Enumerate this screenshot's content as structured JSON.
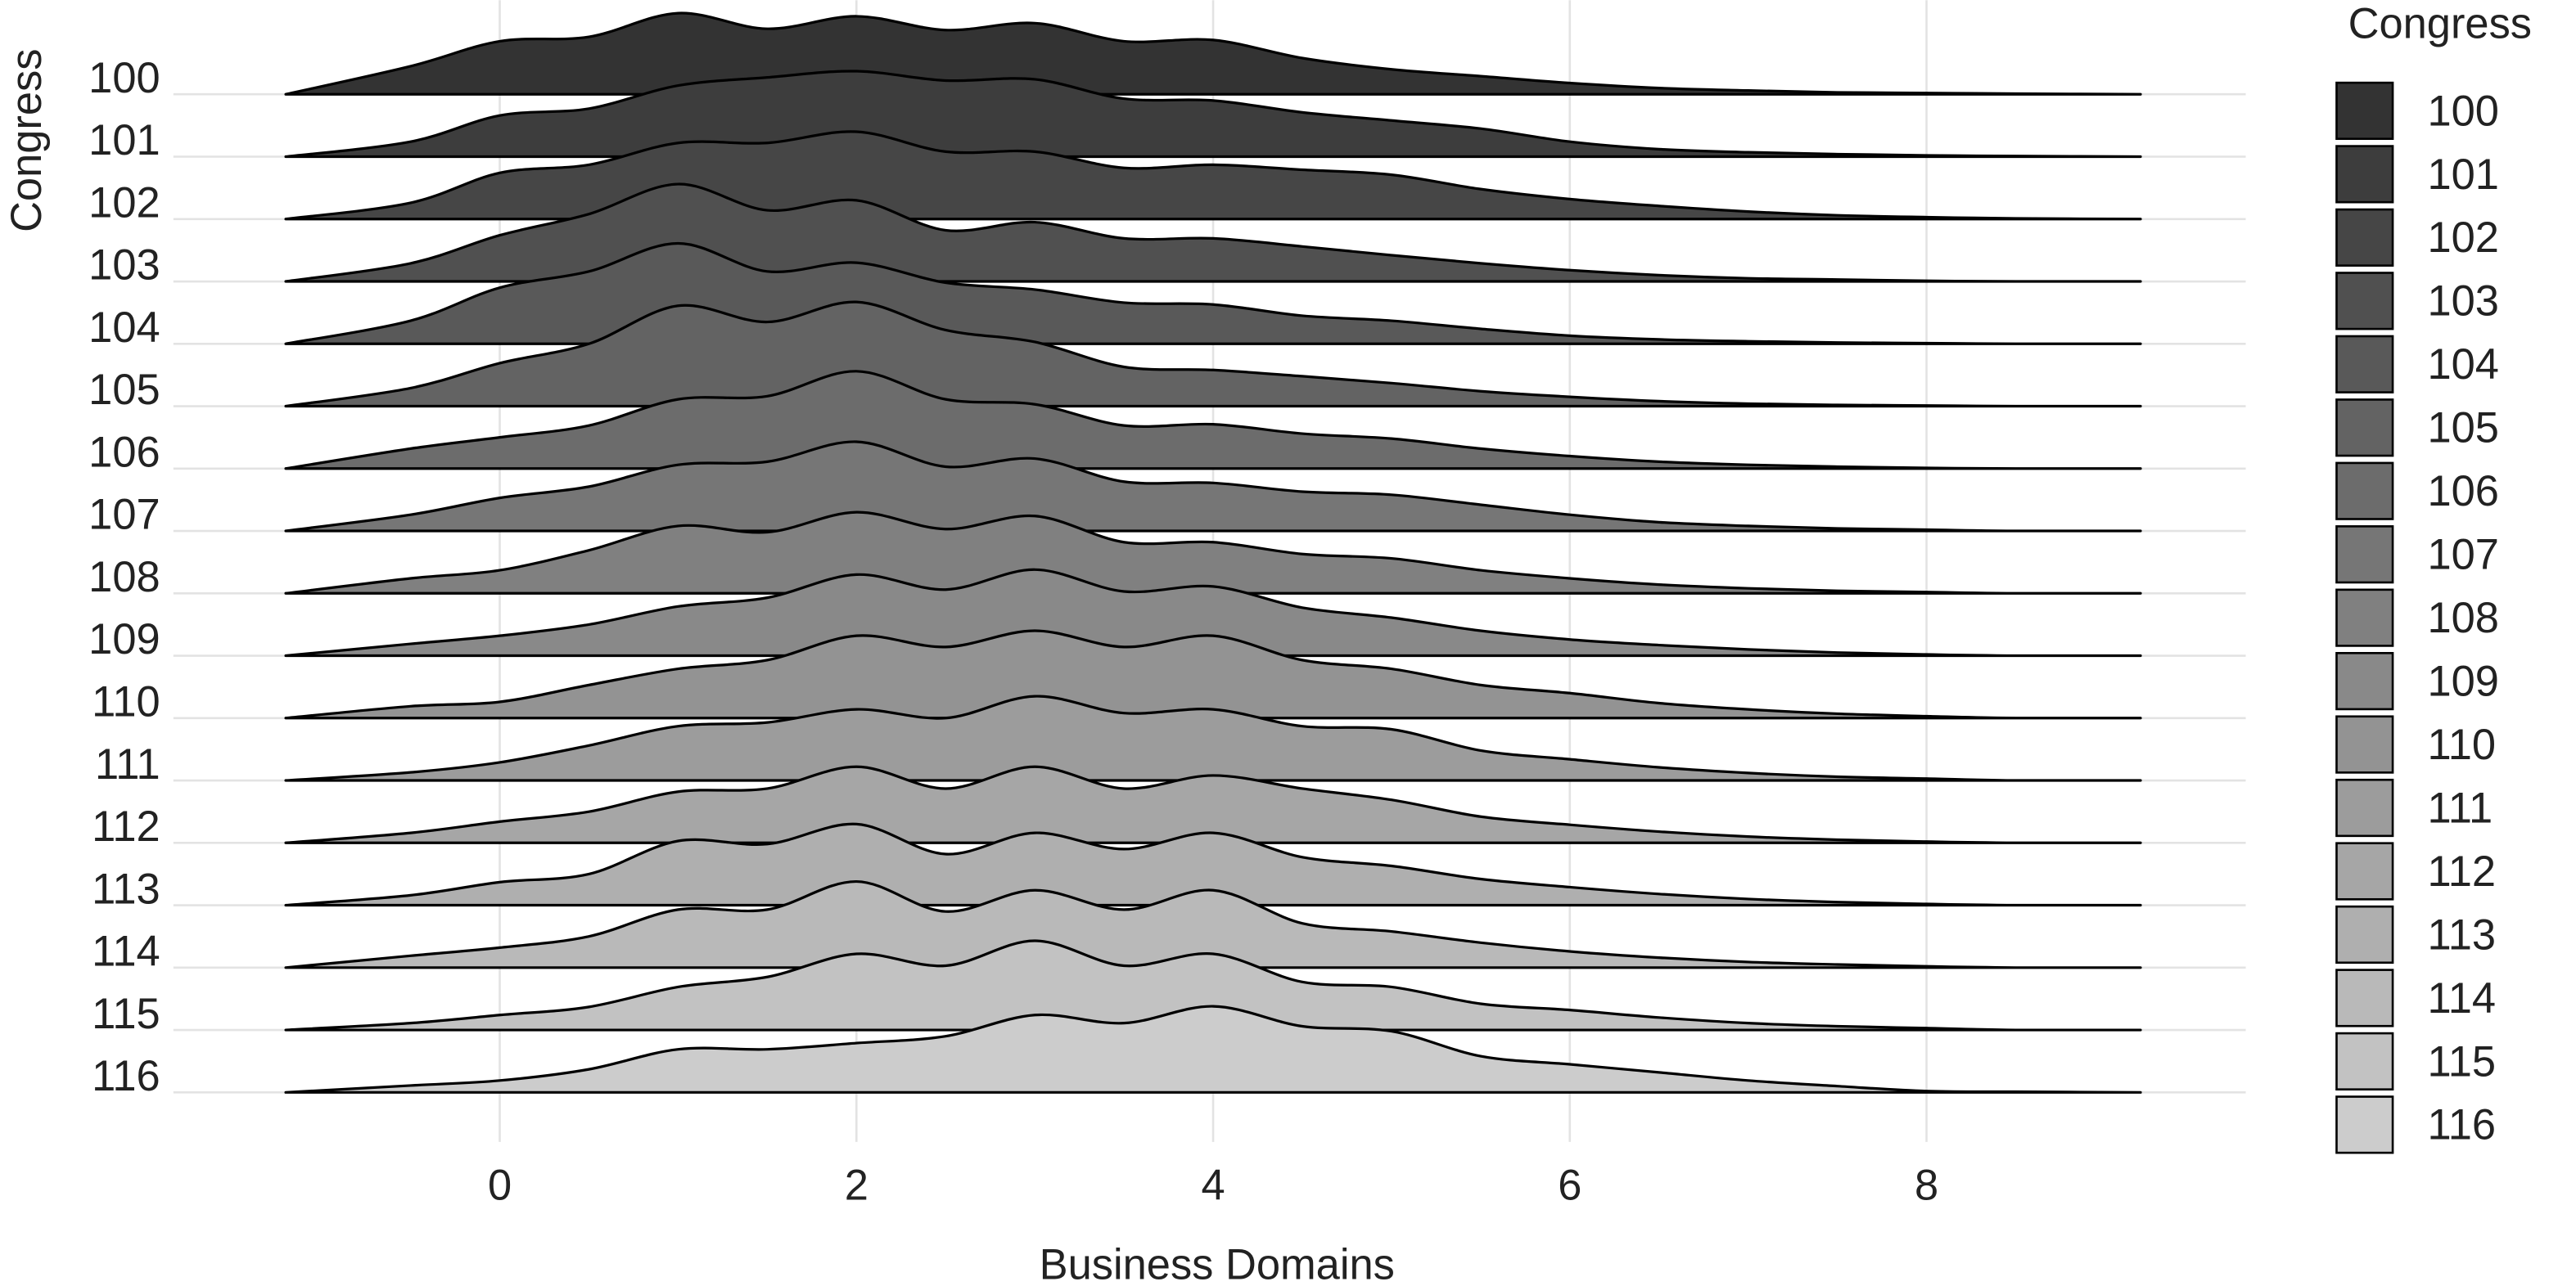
{
  "chart_data": {
    "type": "ridgeline",
    "xlabel": "Business Domains",
    "ylabel": "Congress",
    "legend_title": "Congress",
    "xlim": [
      -1.83,
      9.79
    ],
    "xticks": [
      0,
      2,
      4,
      6,
      8
    ],
    "grid": true,
    "legend_position": "right",
    "x": [
      -1.2,
      -0.5,
      0,
      0.5,
      1,
      1.5,
      2,
      2.5,
      3,
      3.5,
      4,
      4.5,
      5,
      5.5,
      6,
      6.5,
      7,
      7.5,
      8,
      8.5,
      9.2
    ],
    "series": [
      {
        "name": "100",
        "color": "#333333",
        "values": [
          0,
          0.45,
          0.85,
          0.92,
          1.3,
          1.05,
          1.25,
          1.03,
          1.14,
          0.85,
          0.87,
          0.58,
          0.4,
          0.29,
          0.18,
          0.1,
          0.06,
          0.03,
          0.02,
          0.01,
          0
        ]
      },
      {
        "name": "101",
        "color": "#3d3d3d",
        "values": [
          0,
          0.24,
          0.66,
          0.77,
          1.14,
          1.27,
          1.37,
          1.22,
          1.24,
          0.93,
          0.9,
          0.71,
          0.58,
          0.45,
          0.24,
          0.12,
          0.07,
          0.04,
          0.02,
          0.01,
          0
        ]
      },
      {
        "name": "102",
        "color": "#464646",
        "values": [
          0,
          0.26,
          0.74,
          0.87,
          1.22,
          1.22,
          1.4,
          1.08,
          1.08,
          0.82,
          0.87,
          0.79,
          0.71,
          0.48,
          0.32,
          0.21,
          0.12,
          0.06,
          0.03,
          0.01,
          0
        ]
      },
      {
        "name": "103",
        "color": "#505050",
        "values": [
          0,
          0.29,
          0.74,
          1.08,
          1.56,
          1.14,
          1.3,
          0.82,
          0.95,
          0.69,
          0.69,
          0.56,
          0.42,
          0.29,
          0.18,
          0.1,
          0.05,
          0.03,
          0.01,
          0,
          0
        ]
      },
      {
        "name": "104",
        "color": "#595959",
        "values": [
          0,
          0.37,
          0.9,
          1.16,
          1.61,
          1.16,
          1.3,
          0.98,
          0.87,
          0.66,
          0.63,
          0.45,
          0.37,
          0.24,
          0.13,
          0.07,
          0.04,
          0.02,
          0.01,
          0,
          0
        ]
      },
      {
        "name": "105",
        "color": "#636363",
        "values": [
          0,
          0.29,
          0.69,
          1.0,
          1.61,
          1.35,
          1.67,
          1.22,
          1.03,
          0.63,
          0.58,
          0.48,
          0.37,
          0.24,
          0.15,
          0.08,
          0.04,
          0.02,
          0.01,
          0,
          0
        ]
      },
      {
        "name": "106",
        "color": "#6c6c6c",
        "values": [
          0,
          0.32,
          0.5,
          0.69,
          1.11,
          1.16,
          1.56,
          1.11,
          1.03,
          0.69,
          0.71,
          0.56,
          0.48,
          0.32,
          0.2,
          0.11,
          0.06,
          0.03,
          0.01,
          0,
          0
        ]
      },
      {
        "name": "107",
        "color": "#767676",
        "values": [
          0,
          0.26,
          0.53,
          0.71,
          1.06,
          1.11,
          1.43,
          1.03,
          1.16,
          0.79,
          0.77,
          0.63,
          0.58,
          0.42,
          0.26,
          0.14,
          0.08,
          0.04,
          0.02,
          0,
          0
        ]
      },
      {
        "name": "108",
        "color": "#808080",
        "values": [
          0,
          0.24,
          0.37,
          0.69,
          1.08,
          0.98,
          1.3,
          1.03,
          1.24,
          0.82,
          0.82,
          0.63,
          0.56,
          0.37,
          0.24,
          0.14,
          0.08,
          0.04,
          0.02,
          0,
          0
        ]
      },
      {
        "name": "109",
        "color": "#898989",
        "values": [
          0,
          0.19,
          0.32,
          0.5,
          0.79,
          0.93,
          1.3,
          1.06,
          1.38,
          1.03,
          1.11,
          0.77,
          0.61,
          0.4,
          0.26,
          0.17,
          0.1,
          0.05,
          0.02,
          0,
          0
        ]
      },
      {
        "name": "110",
        "color": "#939393",
        "values": [
          0,
          0.19,
          0.26,
          0.53,
          0.79,
          0.93,
          1.32,
          1.14,
          1.4,
          1.14,
          1.32,
          0.93,
          0.79,
          0.53,
          0.4,
          0.24,
          0.14,
          0.07,
          0.03,
          0,
          0
        ]
      },
      {
        "name": "111",
        "color": "#9c9c9c",
        "values": [
          0,
          0.13,
          0.29,
          0.56,
          0.87,
          0.93,
          1.14,
          1.0,
          1.35,
          1.08,
          1.14,
          0.87,
          0.82,
          0.48,
          0.34,
          0.21,
          0.12,
          0.06,
          0.03,
          0,
          0
        ]
      },
      {
        "name": "112",
        "color": "#a6a6a6",
        "values": [
          0,
          0.16,
          0.34,
          0.5,
          0.82,
          0.87,
          1.22,
          0.87,
          1.22,
          0.87,
          1.08,
          0.87,
          0.69,
          0.42,
          0.29,
          0.18,
          0.1,
          0.05,
          0.02,
          0,
          0
        ]
      },
      {
        "name": "113",
        "color": "#afafaf",
        "values": [
          0,
          0.16,
          0.37,
          0.5,
          1.03,
          0.98,
          1.3,
          0.82,
          1.16,
          0.9,
          1.16,
          0.77,
          0.63,
          0.42,
          0.29,
          0.18,
          0.1,
          0.05,
          0.02,
          0,
          0
        ]
      },
      {
        "name": "114",
        "color": "#b9b9b9",
        "values": [
          0,
          0.19,
          0.32,
          0.5,
          0.93,
          0.93,
          1.38,
          0.9,
          1.24,
          0.93,
          1.24,
          0.71,
          0.58,
          0.4,
          0.26,
          0.16,
          0.09,
          0.05,
          0.02,
          0,
          0
        ]
      },
      {
        "name": "115",
        "color": "#c2c2c2",
        "values": [
          0,
          0.11,
          0.24,
          0.37,
          0.69,
          0.85,
          1.22,
          1.03,
          1.43,
          1.03,
          1.22,
          0.77,
          0.69,
          0.42,
          0.32,
          0.2,
          0.11,
          0.06,
          0.03,
          0,
          0
        ]
      },
      {
        "name": "116",
        "color": "#cccccc",
        "values": [
          0,
          0.11,
          0.19,
          0.37,
          0.69,
          0.69,
          0.79,
          0.9,
          1.24,
          1.11,
          1.38,
          1.06,
          0.98,
          0.58,
          0.45,
          0.32,
          0.19,
          0.1,
          0.02,
          0.01,
          0
        ]
      }
    ]
  }
}
